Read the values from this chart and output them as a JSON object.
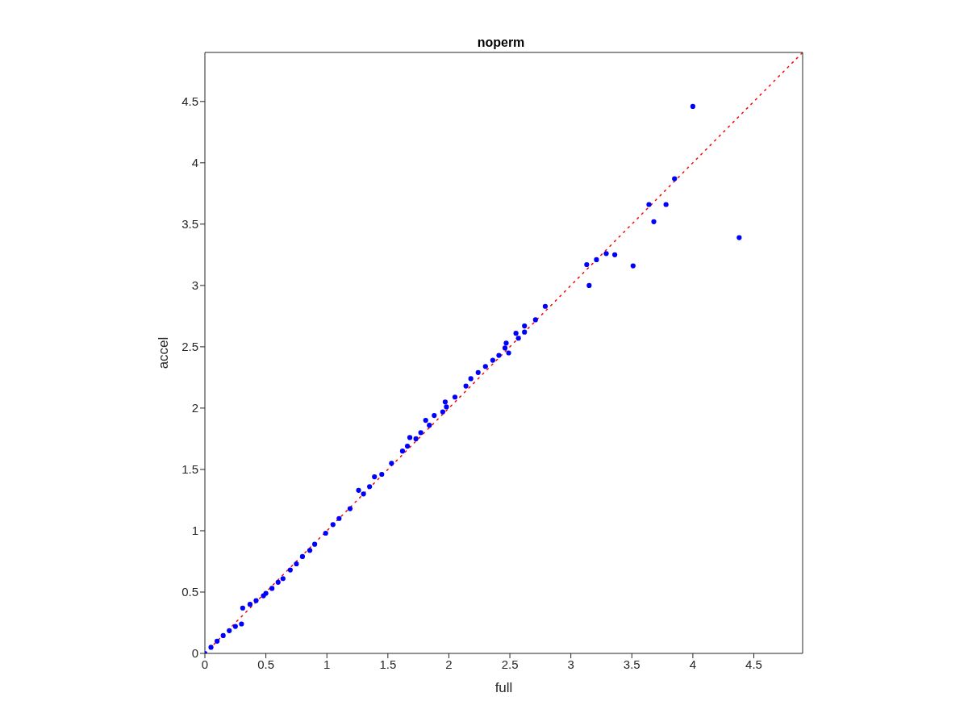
{
  "chart_data": {
    "type": "scatter",
    "title": "noperm",
    "xlabel": "full",
    "ylabel": "accel",
    "xlim": [
      0,
      4.9
    ],
    "ylim": [
      0,
      4.9
    ],
    "xticks": [
      0,
      0.5,
      1,
      1.5,
      2,
      2.5,
      3,
      3.5,
      4,
      4.5
    ],
    "yticks": [
      0,
      0.5,
      1,
      1.5,
      2,
      2.5,
      3,
      3.5,
      4,
      4.5
    ],
    "grid": false,
    "series": [
      {
        "type": "scatter",
        "color": "#0000ff",
        "marker": "circle",
        "x": [
          0,
          0.05,
          0.1,
          0.15,
          0.2,
          0.25,
          0.3,
          0.31,
          0.37,
          0.42,
          0.48,
          0.5,
          0.55,
          0.6,
          0.64,
          0.7,
          0.75,
          0.8,
          0.86,
          0.9,
          0.99,
          1.05,
          1.1,
          1.19,
          1.26,
          1.3,
          1.35,
          1.39,
          1.45,
          1.53,
          1.62,
          1.66,
          1.68,
          1.73,
          1.77,
          1.81,
          1.84,
          1.88,
          1.95,
          1.97,
          1.98,
          2.05,
          2.14,
          2.18,
          2.24,
          2.3,
          2.36,
          2.41,
          2.46,
          2.47,
          2.49,
          2.55,
          2.57,
          2.62,
          2.62,
          2.71,
          2.79,
          3.13,
          3.15,
          3.21,
          3.29,
          3.36,
          3.51,
          3.64,
          3.68,
          3.78,
          3.85,
          4.0,
          4.38
        ],
        "values": [
          0,
          0.05,
          0.1,
          0.145,
          0.185,
          0.22,
          0.24,
          0.37,
          0.4,
          0.43,
          0.47,
          0.49,
          0.53,
          0.58,
          0.61,
          0.68,
          0.73,
          0.79,
          0.84,
          0.89,
          0.98,
          1.05,
          1.1,
          1.18,
          1.33,
          1.3,
          1.36,
          1.44,
          1.46,
          1.55,
          1.65,
          1.69,
          1.76,
          1.75,
          1.8,
          1.9,
          1.86,
          1.94,
          1.97,
          2.05,
          2.01,
          2.09,
          2.18,
          2.24,
          2.29,
          2.34,
          2.39,
          2.43,
          2.49,
          2.53,
          2.45,
          2.61,
          2.57,
          2.67,
          2.62,
          2.72,
          2.83,
          3.17,
          3.0,
          3.21,
          3.26,
          3.25,
          3.16,
          3.66,
          3.52,
          3.66,
          3.87,
          4.46,
          3.39
        ]
      },
      {
        "type": "line",
        "color": "#ff0000",
        "line_style": "dotted",
        "x": [
          0,
          4.9
        ],
        "values": [
          0,
          4.9
        ]
      }
    ]
  }
}
